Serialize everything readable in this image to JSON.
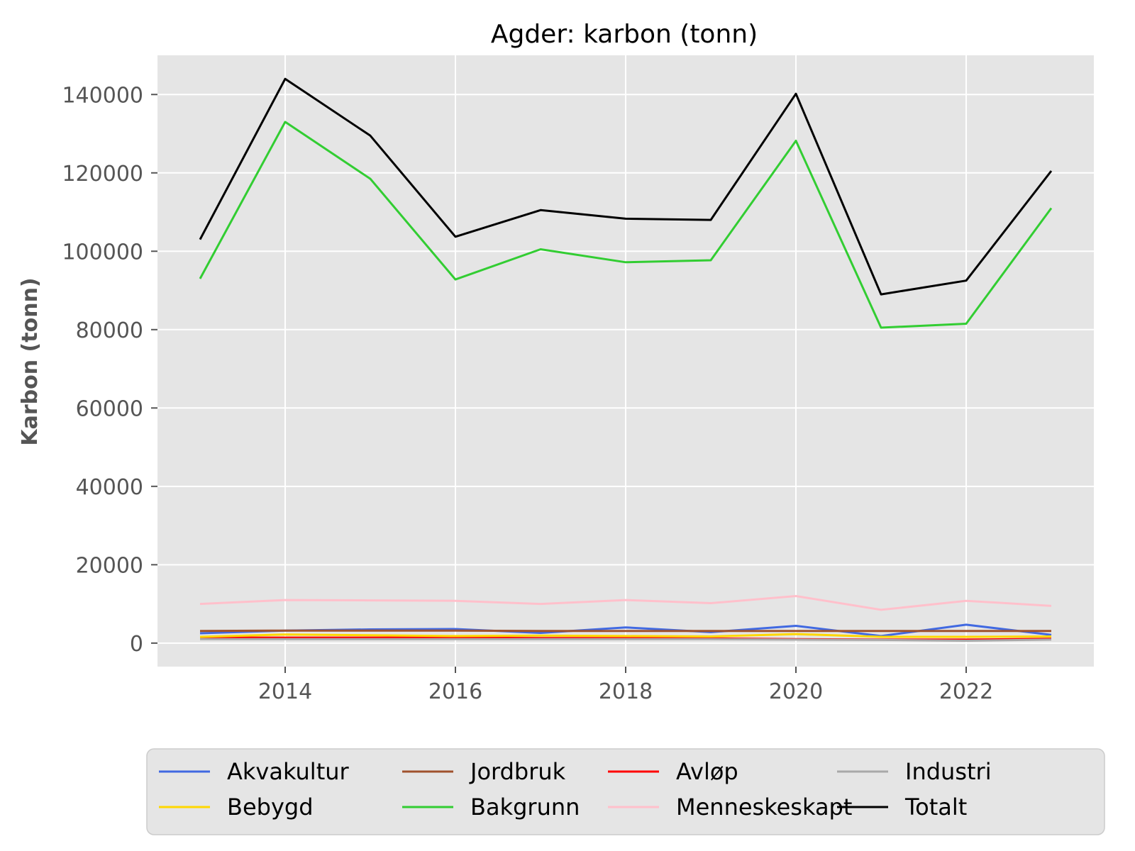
{
  "chart_data": {
    "type": "line",
    "title": "Agder: karbon (tonn)",
    "xlabel": "",
    "ylabel": "Karbon (tonn)",
    "x": [
      2013,
      2014,
      2015,
      2016,
      2017,
      2018,
      2019,
      2020,
      2021,
      2022,
      2023
    ],
    "xlim": [
      2012.5,
      2023.5
    ],
    "ylim": [
      -6000,
      150000
    ],
    "xticks": [
      2014,
      2016,
      2018,
      2020,
      2022
    ],
    "yticks": [
      0,
      20000,
      40000,
      60000,
      80000,
      100000,
      120000,
      140000
    ],
    "grid": true,
    "legend_position": "bottom",
    "background": "#e5e5e5",
    "series": [
      {
        "name": "Akvakultur",
        "color": "#4169e1",
        "values": [
          2500,
          3200,
          3500,
          3600,
          2600,
          4000,
          2800,
          4400,
          1800,
          4700,
          2100
        ]
      },
      {
        "name": "Jordbruk",
        "color": "#a0522d",
        "values": [
          3100,
          3200,
          3200,
          3200,
          3100,
          3100,
          3100,
          3100,
          3100,
          3100,
          3100
        ]
      },
      {
        "name": "Avløp",
        "color": "#ff0000",
        "values": [
          1400,
          1400,
          1400,
          1400,
          1300,
          1300,
          1200,
          1000,
          900,
          900,
          1100
        ]
      },
      {
        "name": "Industri",
        "color": "#a9a9a9",
        "values": [
          1000,
          1000,
          1000,
          1000,
          1000,
          1000,
          1000,
          900,
          800,
          600,
          900
        ]
      },
      {
        "name": "Bebygd",
        "color": "#ffd700",
        "values": [
          1600,
          2200,
          2000,
          1800,
          1900,
          1800,
          1700,
          2300,
          1600,
          1600,
          1700
        ]
      },
      {
        "name": "Bakgrunn",
        "color": "#32cd32",
        "values": [
          93000,
          133000,
          118500,
          92800,
          100500,
          97200,
          97700,
          128200,
          80500,
          81500,
          111000
        ]
      },
      {
        "name": "Menneskeskapt",
        "color": "#ffc0cb",
        "values": [
          10000,
          11000,
          10900,
          10800,
          10000,
          11000,
          10200,
          12000,
          8500,
          10800,
          9500
        ]
      },
      {
        "name": "Totalt",
        "color": "#000000",
        "values": [
          103000,
          144000,
          129500,
          103700,
          110500,
          108300,
          108000,
          140200,
          89000,
          92500,
          120500
        ]
      }
    ]
  }
}
